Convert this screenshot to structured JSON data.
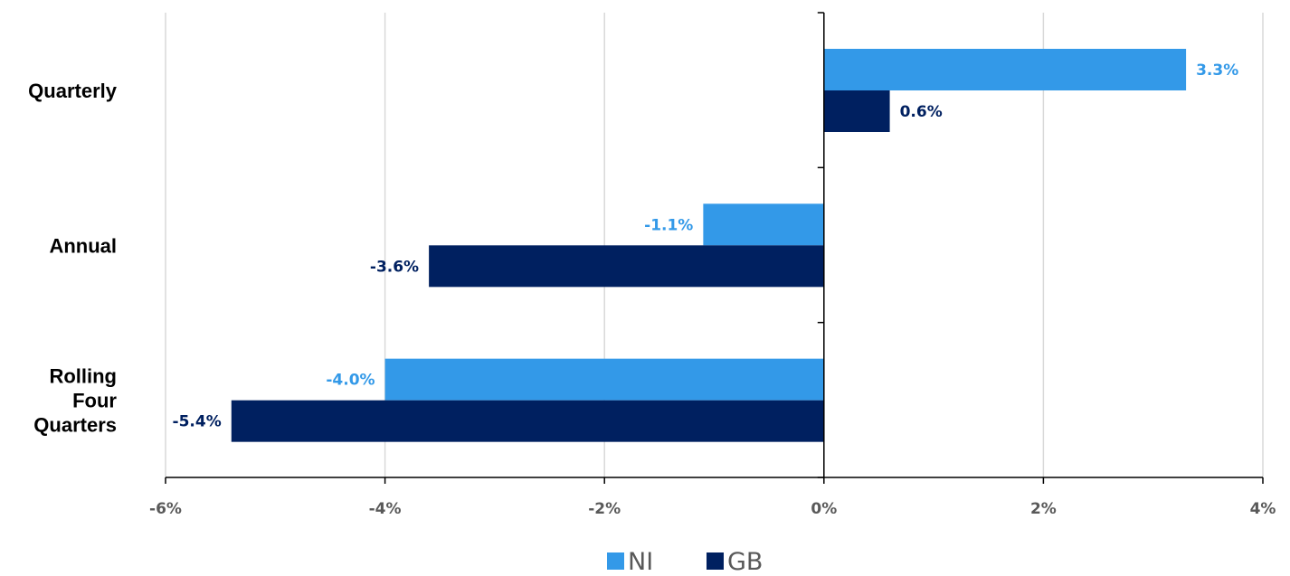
{
  "chart_data": {
    "type": "bar",
    "orientation": "horizontal",
    "categories": [
      [
        "Quarterly"
      ],
      [
        "Annual"
      ],
      [
        "Rolling",
        "Four",
        "Quarters"
      ]
    ],
    "series": [
      {
        "name": "NI",
        "values": [
          3.3,
          -1.1,
          -4.0
        ],
        "labels": [
          "3.3%",
          "-1.1%",
          "-4.0%"
        ],
        "color": "#3399E8"
      },
      {
        "name": "GB",
        "values": [
          0.6,
          -3.6,
          -5.4
        ],
        "labels": [
          "0.6%",
          "-3.6%",
          "-5.4%"
        ],
        "color": "#002060"
      }
    ],
    "xlim": [
      -6,
      4
    ],
    "xticks": [
      -6,
      -4,
      -2,
      0,
      2,
      4
    ],
    "xtick_labels": [
      "-6%",
      "-4%",
      "-2%",
      "0%",
      "2%",
      "4%"
    ],
    "grid": true,
    "legend": "bottom-center",
    "title": "",
    "xlabel": "",
    "ylabel": ""
  }
}
